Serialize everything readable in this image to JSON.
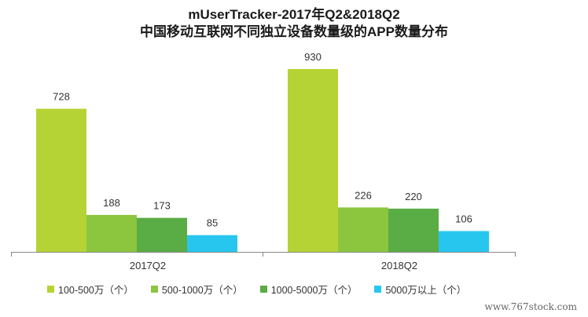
{
  "title": {
    "line1": "mUserTracker-2017年Q2&2018Q2",
    "line2": "中国移动互联网不同独立设备数量级的APP数量分布"
  },
  "watermark": "www.767stock.com",
  "chart_data": {
    "type": "bar",
    "categories": [
      "2017Q2",
      "2018Q2"
    ],
    "series": [
      {
        "name": "100-500万（个）",
        "color": "#b5d334",
        "values": [
          728,
          930
        ]
      },
      {
        "name": "500-1000万（个）",
        "color": "#8cc63f",
        "values": [
          188,
          226
        ]
      },
      {
        "name": "1000-5000万（个）",
        "color": "#5aac44",
        "values": [
          173,
          220
        ]
      },
      {
        "name": "5000万以上（个）",
        "color": "#27c6ef",
        "values": [
          85,
          106
        ]
      }
    ],
    "legend_position": "bottom",
    "grid": false
  }
}
